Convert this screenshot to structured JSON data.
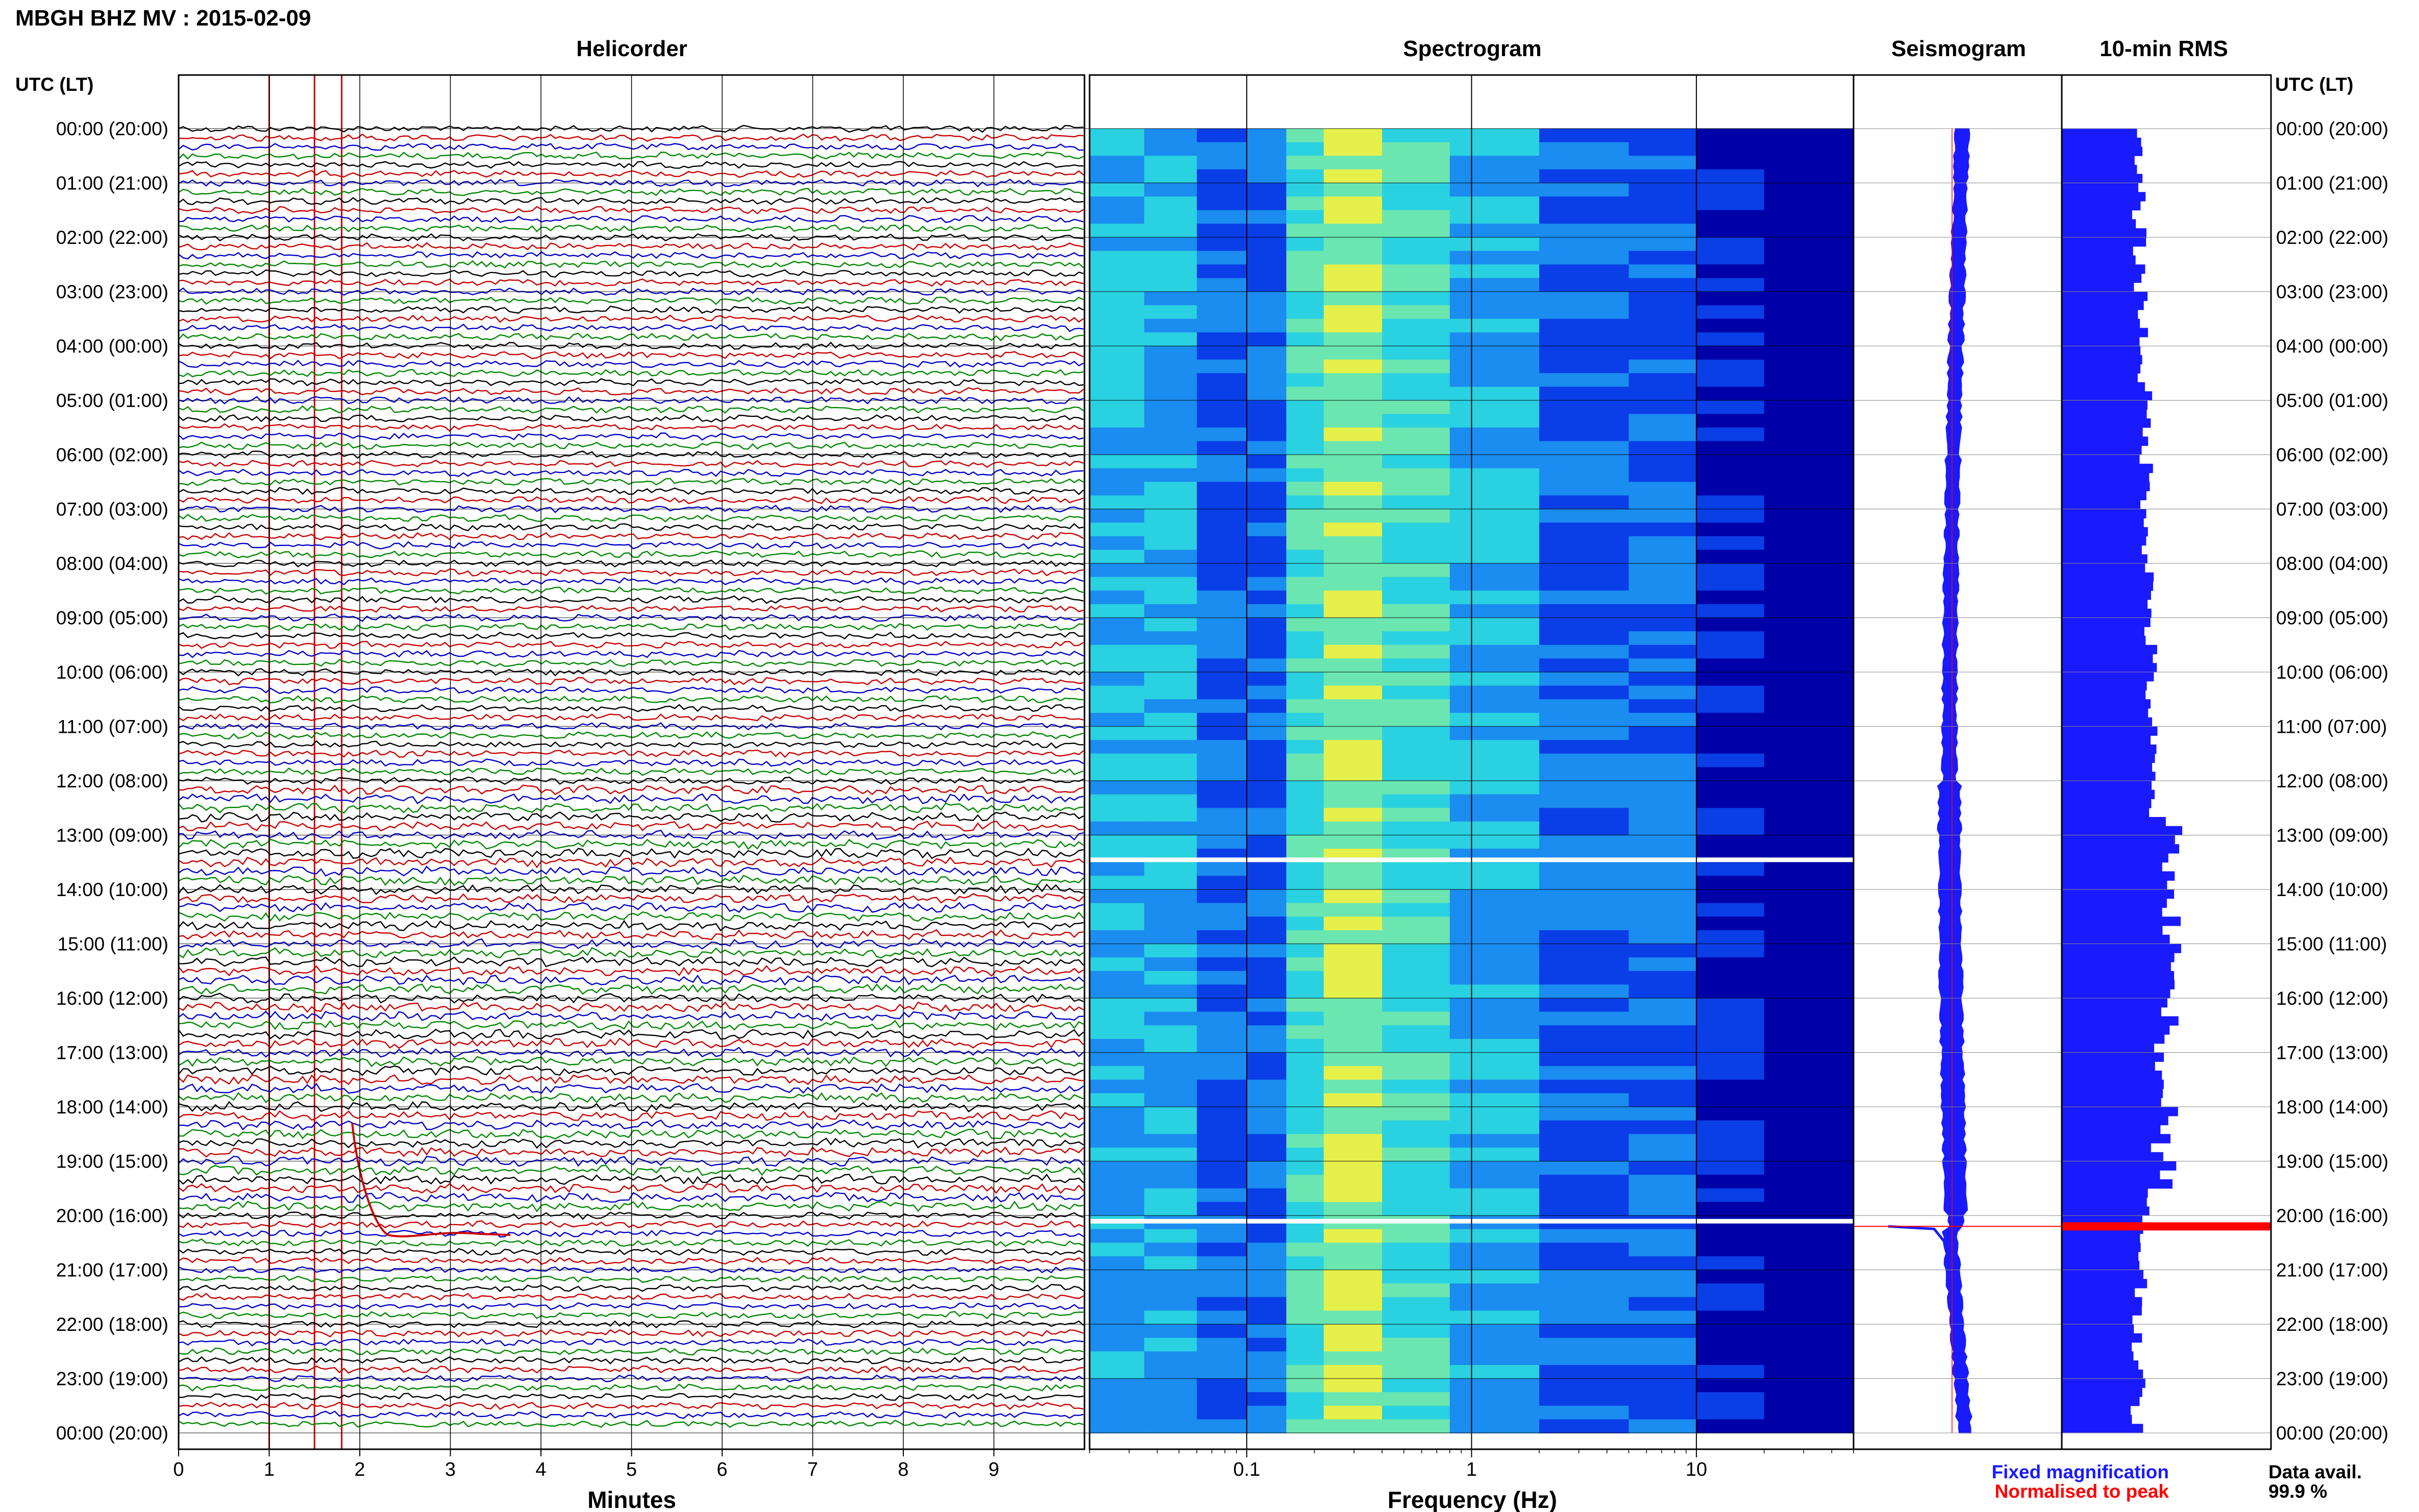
{
  "title": "MBGH BHZ MV : 2015-02-09",
  "panels": {
    "helicorder": "Helicorder",
    "spectrogram": "Spectrogram",
    "seismogram": "Seismogram",
    "rms": "10-min RMS"
  },
  "time_axis_label": "UTC (LT)",
  "hour_labels": [
    "00:00 (20:00)",
    "01:00 (21:00)",
    "02:00 (22:00)",
    "03:00 (23:00)",
    "04:00 (00:00)",
    "05:00 (01:00)",
    "06:00 (02:00)",
    "07:00 (03:00)",
    "08:00 (04:00)",
    "09:00 (05:00)",
    "10:00 (06:00)",
    "11:00 (07:00)",
    "12:00 (08:00)",
    "13:00 (09:00)",
    "14:00 (10:00)",
    "15:00 (11:00)",
    "16:00 (12:00)",
    "17:00 (13:00)",
    "18:00 (14:00)",
    "19:00 (15:00)",
    "20:00 (16:00)",
    "21:00 (17:00)",
    "22:00 (18:00)",
    "23:00 (19:00)",
    "00:00 (20:00)"
  ],
  "legend": {
    "fixed": "Fixed magnification",
    "normalised": "Normalised to peak",
    "fixed_color": "#1a1aff",
    "normalised_color": "#ff0000"
  },
  "data_avail": {
    "label": "Data avail.",
    "value": "99.9 %"
  },
  "chart_data": [
    {
      "type": "line",
      "name": "helicorder",
      "xlabel": "Minutes",
      "x_ticks": [
        0,
        1,
        2,
        3,
        4,
        5,
        6,
        7,
        8,
        9
      ],
      "xlim": [
        0,
        10
      ],
      "rows": 144,
      "trace_colors": [
        "#000000",
        "#cc0000",
        "#0000cc",
        "#008800"
      ],
      "annotation_lines_minutes": [
        1.0,
        1.5,
        1.8
      ]
    },
    {
      "type": "heatmap",
      "name": "spectrogram",
      "xlabel": "Frequency (Hz)",
      "x_scale": "log",
      "x_tick_labels": [
        "0.1",
        "1",
        "10"
      ],
      "xlim": [
        0.02,
        50
      ],
      "colormap": [
        "#0000a8",
        "#0a3ee6",
        "#1b8cf0",
        "#2ad1e0",
        "#6be6b0",
        "#e6f04a"
      ],
      "gaps_hours": [
        13.45,
        20.1
      ]
    },
    {
      "type": "line",
      "name": "seismogram",
      "event_hour": 20.2
    },
    {
      "type": "bar",
      "name": "10-min RMS",
      "event_hour": 20.2,
      "event_color": "#ff0000",
      "bar_color": "#1a1aff"
    }
  ]
}
